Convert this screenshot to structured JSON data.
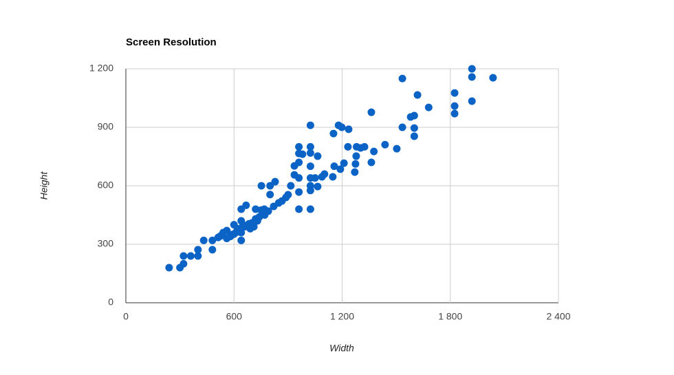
{
  "chart_data": {
    "type": "scatter",
    "title": "Screen Resolution",
    "xlabel": "Width",
    "ylabel": "Height",
    "color": "#0b63c5",
    "grid": true,
    "xlim": [
      0,
      2400
    ],
    "ylim": [
      0,
      1200
    ],
    "xticks": [
      0,
      600,
      {
        "value": 1200,
        "label": "1 200"
      },
      {
        "value": 1800,
        "label": "1 800"
      },
      {
        "value": 2400,
        "label": "2 400"
      }
    ],
    "yticks": [
      0,
      300,
      600,
      900,
      {
        "value": 1200,
        "label": "1 200"
      }
    ],
    "x": [
      240,
      300,
      320,
      320,
      360,
      400,
      400,
      432,
      480,
      480,
      512,
      524,
      540,
      560,
      600,
      600,
      640,
      640,
      640,
      640,
      667,
      683,
      720,
      720,
      752,
      750,
      768,
      800,
      800,
      828,
      820,
      848,
      866,
      888,
      900,
      915,
      935,
      935,
      960,
      960,
      960,
      960,
      960,
      960,
      980,
      1024,
      1024,
      1024,
      1024,
      1024,
      1024,
      1024,
      1024,
      1050,
      1064,
      1064,
      1088,
      1102,
      1148,
      1152,
      1156,
      1180,
      1190,
      1198,
      1210,
      1236,
      1232,
      1270,
      1274,
      1278,
      1280,
      1302,
      1324,
      1362,
      1362,
      1376,
      1438,
      1503,
      1534,
      1534,
      1580,
      1600,
      1600,
      1600,
      1618,
      1680,
      1824,
      1824,
      1824,
      1920,
      1920,
      1920,
      2037,
      580,
      620,
      660,
      700,
      740,
      610,
      650,
      690,
      730,
      770,
      790,
      710,
      560,
      590
    ],
    "values": [
      180,
      180,
      200,
      240,
      240,
      240,
      272,
      320,
      272,
      320,
      335,
      342,
      360,
      370,
      400,
      352,
      360,
      420,
      320,
      480,
      500,
      405,
      430,
      480,
      600,
      475,
      480,
      600,
      555,
      621,
      494,
      512,
      522,
      540,
      554,
      600,
      656,
      702,
      800,
      766,
      720,
      640,
      480,
      568,
      762,
      768,
      800,
      910,
      700,
      640,
      600,
      480,
      576,
      640,
      752,
      596,
      646,
      660,
      646,
      868,
      700,
      910,
      685,
      900,
      716,
      890,
      800,
      670,
      712,
      752,
      800,
      794,
      800,
      977,
      720,
      776,
      811,
      790,
      1150,
      900,
      953,
      960,
      896,
      854,
      1066,
      1002,
      1076,
      1009,
      970,
      1200,
      1158,
      1034,
      1154,
      340,
      380,
      390,
      410,
      440,
      360,
      400,
      380,
      420,
      450,
      470,
      390,
      330,
      350
    ]
  }
}
